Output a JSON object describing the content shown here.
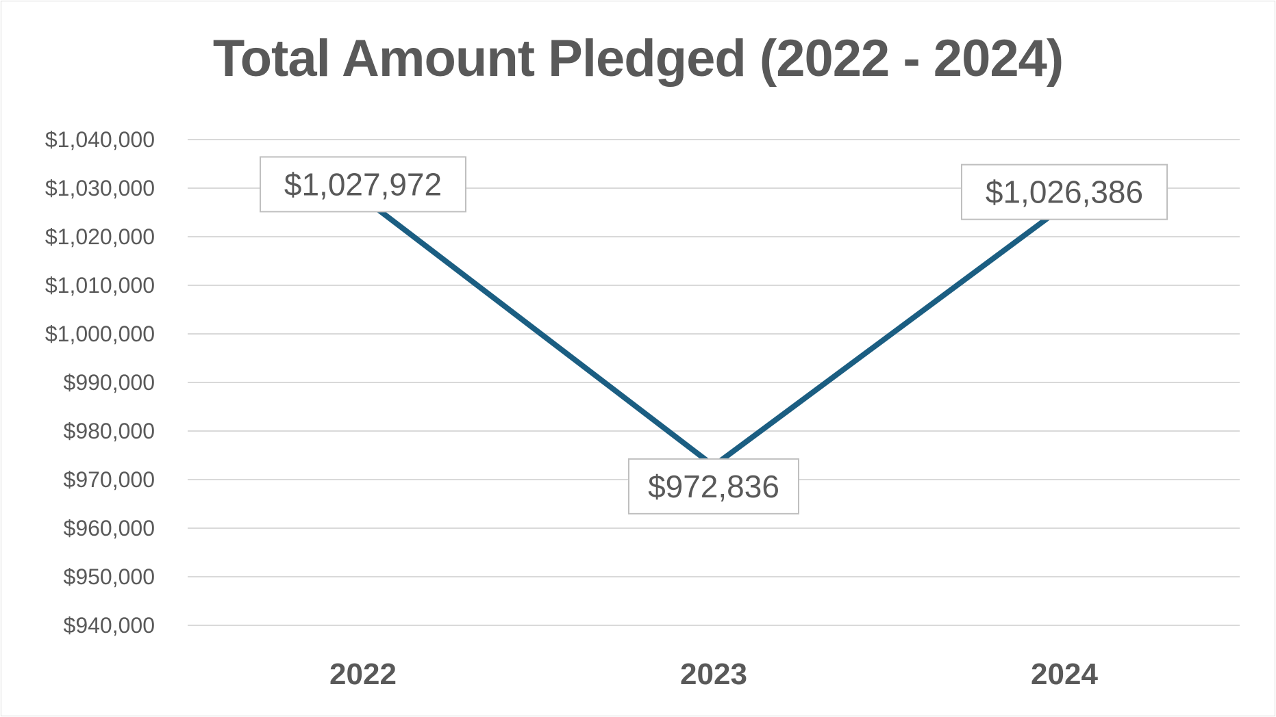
{
  "chart_data": {
    "type": "line",
    "title": "Total Amount Pledged (2022 - 2024)",
    "xlabel": "",
    "ylabel": "",
    "categories": [
      "2022",
      "2023",
      "2024"
    ],
    "series": [
      {
        "name": "Total Amount Pledged",
        "values": [
          1027972,
          972836,
          1026386
        ],
        "labels": [
          "$1,027,972",
          "$972,836",
          "$1,026,386"
        ],
        "color": "#1b5e82"
      }
    ],
    "ylim": [
      940000,
      1040000
    ],
    "ytick_step": 10000,
    "yticks": [
      "$940,000",
      "$950,000",
      "$960,000",
      "$970,000",
      "$980,000",
      "$990,000",
      "$1,000,000",
      "$1,010,000",
      "$1,020,000",
      "$1,030,000",
      "$1,040,000"
    ],
    "grid": true,
    "legend": "none"
  }
}
